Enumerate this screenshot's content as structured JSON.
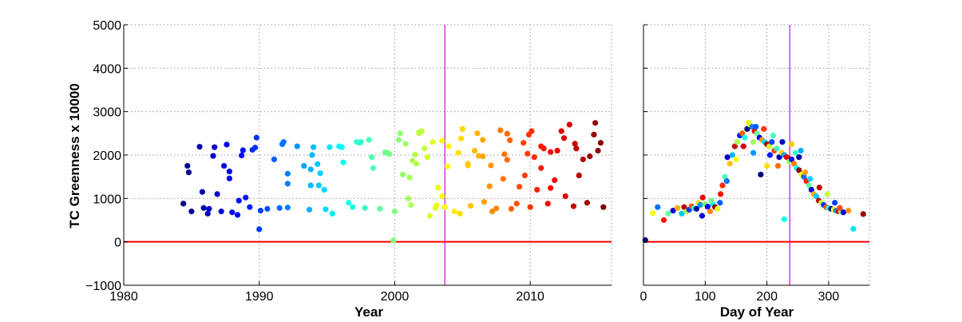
{
  "chart_data": [
    {
      "type": "scatter",
      "panel": "time-series",
      "title": "",
      "xlabel": "Year",
      "ylabel": "TC Greenness x 10000",
      "xlim": [
        1980,
        2016
      ],
      "ylim": [
        -1000,
        5000
      ],
      "xticks": [
        1980,
        1990,
        2000,
        2010
      ],
      "yticks": [
        -1000,
        0,
        1000,
        2000,
        3000,
        4000,
        5000
      ],
      "grid": true,
      "colormap": "jet (colored by year)",
      "reference_lines": [
        {
          "orientation": "horizontal",
          "value": 0,
          "color": "#ff0000"
        },
        {
          "orientation": "vertical",
          "value": 2003.7,
          "color": "#dd00dd"
        }
      ],
      "points": [
        [
          1984.4,
          880
        ],
        [
          1984.7,
          1750
        ],
        [
          1984.8,
          1600
        ],
        [
          1985.0,
          700
        ],
        [
          1985.6,
          2190
        ],
        [
          1985.8,
          1150
        ],
        [
          1985.9,
          780
        ],
        [
          1986.2,
          650
        ],
        [
          1986.3,
          760
        ],
        [
          1986.6,
          1980
        ],
        [
          1986.7,
          2180
        ],
        [
          1986.9,
          1100
        ],
        [
          1987.2,
          700
        ],
        [
          1987.4,
          1750
        ],
        [
          1987.6,
          2240
        ],
        [
          1987.8,
          1620
        ],
        [
          1987.8,
          1460
        ],
        [
          1988.0,
          680
        ],
        [
          1988.4,
          620
        ],
        [
          1988.5,
          950
        ],
        [
          1988.7,
          1990
        ],
        [
          1988.8,
          2110
        ],
        [
          1989.0,
          1020
        ],
        [
          1989.3,
          800
        ],
        [
          1989.5,
          2120
        ],
        [
          1989.7,
          2170
        ],
        [
          1989.8,
          2400
        ],
        [
          1990.0,
          290
        ],
        [
          1990.1,
          720
        ],
        [
          1990.6,
          760
        ],
        [
          1991.1,
          1900
        ],
        [
          1991.5,
          780
        ],
        [
          1991.7,
          2250
        ],
        [
          1991.8,
          2300
        ],
        [
          1992.1,
          1340
        ],
        [
          1992.1,
          790
        ],
        [
          1992.1,
          1570
        ],
        [
          1992.8,
          2200
        ],
        [
          1993.3,
          1750
        ],
        [
          1993.7,
          740
        ],
        [
          1993.8,
          1300
        ],
        [
          1993.8,
          1670
        ],
        [
          1993.9,
          2000
        ],
        [
          1994.0,
          2180
        ],
        [
          1994.3,
          1790
        ],
        [
          1994.4,
          1300
        ],
        [
          1994.5,
          1580
        ],
        [
          1994.8,
          1200
        ],
        [
          1994.9,
          750
        ],
        [
          1995.2,
          2180
        ],
        [
          1995.4,
          650
        ],
        [
          1995.9,
          2200
        ],
        [
          1996.1,
          2180
        ],
        [
          1996.2,
          1830
        ],
        [
          1996.6,
          900
        ],
        [
          1996.9,
          800
        ],
        [
          1997.2,
          2300
        ],
        [
          1997.4,
          2280
        ],
        [
          1997.8,
          780
        ],
        [
          1998.1,
          2350
        ],
        [
          1998.3,
          1950
        ],
        [
          1998.4,
          1700
        ],
        [
          1998.9,
          760
        ],
        [
          1999.3,
          2060
        ],
        [
          1999.5,
          2050
        ],
        [
          1999.9,
          30
        ],
        [
          2000.0,
          700
        ],
        [
          2000.4,
          2500
        ],
        [
          2000.6,
          1550
        ],
        [
          2000.8,
          2260
        ],
        [
          2001.0,
          1000
        ],
        [
          2001.1,
          1480
        ],
        [
          2001.2,
          850
        ],
        [
          2001.3,
          1870
        ],
        [
          2001.5,
          2010
        ],
        [
          2001.6,
          1800
        ],
        [
          2001.8,
          2500
        ],
        [
          2002.0,
          2550
        ],
        [
          2002.2,
          2150
        ],
        [
          2002.4,
          1950
        ],
        [
          2002.6,
          600
        ],
        [
          2002.8,
          2300
        ],
        [
          2003.0,
          780
        ],
        [
          2003.1,
          840
        ],
        [
          2003.2,
          1250
        ],
        [
          2003.5,
          1050
        ],
        [
          2003.7,
          800
        ],
        [
          2003.9,
          1740
        ],
        [
          2004.0,
          2200
        ],
        [
          2004.4,
          700
        ],
        [
          2004.7,
          2050
        ],
        [
          2004.8,
          650
        ],
        [
          2005.0,
          2600
        ],
        [
          2005.4,
          1800
        ],
        [
          2005.6,
          830
        ],
        [
          2005.9,
          2100
        ],
        [
          2006.1,
          2500
        ],
        [
          2006.2,
          1980
        ],
        [
          2006.5,
          2350
        ],
        [
          2006.6,
          920
        ],
        [
          2007.0,
          1280
        ],
        [
          2007.1,
          1760
        ],
        [
          2007.2,
          700
        ],
        [
          2007.5,
          770
        ],
        [
          2007.8,
          2570
        ],
        [
          2008.0,
          1450
        ],
        [
          2008.1,
          2020
        ],
        [
          2008.3,
          1890
        ],
        [
          2008.5,
          2340
        ],
        [
          2008.6,
          760
        ],
        [
          2009.0,
          880
        ],
        [
          2009.2,
          1270
        ],
        [
          2009.5,
          2280
        ],
        [
          2009.6,
          1530
        ],
        [
          2009.8,
          2030
        ],
        [
          2010.0,
          800
        ],
        [
          2010.1,
          2550
        ],
        [
          2010.3,
          1950
        ],
        [
          2010.5,
          1200
        ],
        [
          2010.8,
          1700
        ],
        [
          2011.0,
          2150
        ],
        [
          2011.3,
          880
        ],
        [
          2011.5,
          1240
        ],
        [
          2011.8,
          1420
        ],
        [
          2012.0,
          2100
        ],
        [
          2012.3,
          2550
        ],
        [
          2012.6,
          1050
        ],
        [
          2012.9,
          2700
        ],
        [
          2013.2,
          820
        ],
        [
          2013.4,
          2150
        ],
        [
          2013.6,
          1530
        ],
        [
          2013.9,
          1900
        ],
        [
          2014.2,
          900
        ],
        [
          2014.4,
          1970
        ],
        [
          2014.7,
          2470
        ],
        [
          2014.8,
          2740
        ],
        [
          2015.0,
          2100
        ],
        [
          2015.2,
          2280
        ],
        [
          2015.4,
          800
        ],
        [
          1999.6,
          2020
        ],
        [
          1997.5,
          2300
        ],
        [
          2005.4,
          1760
        ],
        [
          2006.5,
          1970
        ],
        [
          2008.3,
          2490
        ],
        [
          2009.9,
          2470
        ],
        [
          2010.8,
          2200
        ],
        [
          2011.5,
          2070
        ],
        [
          2012.5,
          2390
        ],
        [
          2013.3,
          2260
        ],
        [
          2000.3,
          2350
        ],
        [
          2001.8,
          2530
        ],
        [
          2003.5,
          2330
        ],
        [
          2004.9,
          2380
        ]
      ]
    },
    {
      "type": "scatter",
      "panel": "seasonal",
      "title": "",
      "xlabel": "Day of Year",
      "ylabel": "",
      "xlim": [
        0,
        366
      ],
      "ylim": [
        -1000,
        5000
      ],
      "xticks": [
        0,
        100,
        200,
        300
      ],
      "grid": true,
      "colormap": "jet (colored by year)",
      "reference_lines": [
        {
          "orientation": "horizontal",
          "value": 0,
          "color": "#ff0000"
        },
        {
          "orientation": "vertical",
          "value": 237,
          "color": "#dd00dd"
        }
      ],
      "points": [
        [
          3,
          40
        ],
        [
          15,
          660
        ],
        [
          23,
          800
        ],
        [
          33,
          500
        ],
        [
          40,
          650
        ],
        [
          48,
          720
        ],
        [
          55,
          780
        ],
        [
          62,
          650
        ],
        [
          66,
          800
        ],
        [
          70,
          700
        ],
        [
          74,
          740
        ],
        [
          78,
          820
        ],
        [
          82,
          780
        ],
        [
          86,
          760
        ],
        [
          89,
          900
        ],
        [
          92,
          850
        ],
        [
          96,
          1020
        ],
        [
          100,
          870
        ],
        [
          104,
          810
        ],
        [
          108,
          700
        ],
        [
          112,
          870
        ],
        [
          116,
          800
        ],
        [
          120,
          760
        ],
        [
          124,
          900
        ],
        [
          128,
          1300
        ],
        [
          132,
          1500
        ],
        [
          136,
          1950
        ],
        [
          140,
          1800
        ],
        [
          144,
          2000
        ],
        [
          148,
          2200
        ],
        [
          152,
          2300
        ],
        [
          156,
          2450
        ],
        [
          160,
          2500
        ],
        [
          164,
          2400
        ],
        [
          168,
          2600
        ],
        [
          172,
          2700
        ],
        [
          176,
          2650
        ],
        [
          180,
          2550
        ],
        [
          184,
          2500
        ],
        [
          188,
          2400
        ],
        [
          192,
          2350
        ],
        [
          196,
          2300
        ],
        [
          200,
          2250
        ],
        [
          204,
          2200
        ],
        [
          208,
          2300
        ],
        [
          212,
          2100
        ],
        [
          216,
          2150
        ],
        [
          220,
          1950
        ],
        [
          224,
          2050
        ],
        [
          228,
          2000
        ],
        [
          232,
          1950
        ],
        [
          236,
          1850
        ],
        [
          240,
          1900
        ],
        [
          244,
          1800
        ],
        [
          248,
          1700
        ],
        [
          252,
          1650
        ],
        [
          256,
          1550
        ],
        [
          260,
          1500
        ],
        [
          264,
          1400
        ],
        [
          268,
          1300
        ],
        [
          272,
          1200
        ],
        [
          276,
          1100
        ],
        [
          280,
          1050
        ],
        [
          284,
          950
        ],
        [
          288,
          900
        ],
        [
          292,
          850
        ],
        [
          296,
          800
        ],
        [
          300,
          780
        ],
        [
          304,
          760
        ],
        [
          308,
          740
        ],
        [
          312,
          720
        ],
        [
          316,
          700
        ],
        [
          320,
          690
        ],
        [
          324,
          680
        ],
        [
          332,
          720
        ],
        [
          340,
          300
        ],
        [
          356,
          640
        ],
        [
          170,
          2750
        ],
        [
          182,
          2650
        ],
        [
          195,
          2600
        ],
        [
          210,
          2450
        ],
        [
          225,
          2300
        ],
        [
          240,
          2250
        ],
        [
          255,
          2100
        ],
        [
          162,
          2200
        ],
        [
          178,
          2300
        ],
        [
          205,
          2000
        ],
        [
          218,
          1750
        ],
        [
          228,
          520
        ],
        [
          190,
          1550
        ],
        [
          150,
          1900
        ],
        [
          135,
          1400
        ],
        [
          125,
          1100
        ],
        [
          110,
          950
        ],
        [
          95,
          600
        ],
        [
          262,
          1600
        ],
        [
          270,
          1450
        ],
        [
          285,
          1250
        ],
        [
          298,
          1100
        ],
        [
          310,
          900
        ],
        [
          318,
          780
        ],
        [
          246,
          2050
        ],
        [
          252,
          1950
        ],
        [
          200,
          1750
        ],
        [
          178,
          2050
        ]
      ]
    }
  ]
}
